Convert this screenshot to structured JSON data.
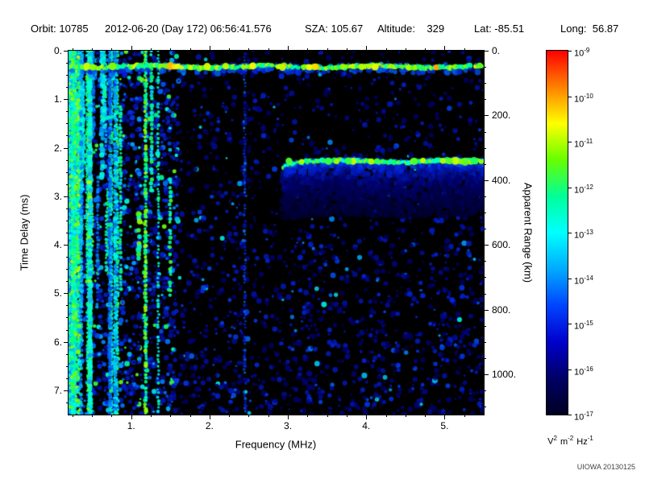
{
  "header": {
    "orbit": "Orbit: 10785",
    "datetime": "2012-06-20 (Day 172) 06:56:41.576",
    "sza": "SZA: 105.67",
    "altitude": "Altitude:    329",
    "lat": "Lat: -85.51",
    "long": "Long:  56.87"
  },
  "watermark": "UIOWA 20130125",
  "chart_data": {
    "type": "heatmap",
    "xlabel": "Frequency (MHz)",
    "ylabel": "Time Delay (ms)",
    "y2label": "Apparent Range (km)",
    "xlim": [
      0.2,
      5.5
    ],
    "ylim": [
      0,
      7.5
    ],
    "y2lim": [
      0,
      1124
    ],
    "km_per_ms": 149.9,
    "x_tick_values": [
      1,
      2,
      3,
      4,
      5
    ],
    "x_tick_labels": [
      "1.",
      "2.",
      "3.",
      "4.",
      "5."
    ],
    "y_tick_values": [
      0,
      1,
      2,
      3,
      4,
      5,
      6,
      7
    ],
    "y_tick_labels": [
      "0.",
      "1.",
      "2.",
      "3.",
      "4.",
      "5.",
      "6.",
      "7."
    ],
    "y2_tick_values": [
      0,
      200,
      400,
      600,
      800,
      1000
    ],
    "y2_tick_labels": [
      "0.",
      "200.",
      "400.",
      "600.",
      "800.",
      "1000."
    ],
    "background": "#000000",
    "colorbar": {
      "scale": "log",
      "max": "1e-9",
      "min": "1e-17",
      "ticks": [
        {
          "b": "10",
          "e": "-9"
        },
        {
          "b": "10",
          "e": "-10"
        },
        {
          "b": "10",
          "e": "-11"
        },
        {
          "b": "10",
          "e": "-12"
        },
        {
          "b": "10",
          "e": "-13"
        },
        {
          "b": "10",
          "e": "-14"
        },
        {
          "b": "10",
          "e": "-15"
        },
        {
          "b": "10",
          "e": "-16"
        },
        {
          "b": "10",
          "e": "-17"
        }
      ],
      "unit_parts": [
        {
          "t": "V",
          "e": "2"
        },
        {
          "t": "m",
          "e": "-2"
        },
        {
          "t": "Hz",
          "e": "-1"
        }
      ],
      "gradient": [
        "#ff0000",
        "#ff8000",
        "#ffff00",
        "#66ff00",
        "#00ff99",
        "#00ffff",
        "#00aaff",
        "#0044ff",
        "#0000cc",
        "#000066",
        "#000022"
      ]
    },
    "features": {
      "echo_bands": [
        {
          "name": "band-1",
          "time_delay_ms": 0.33,
          "apparent_range_km": 49,
          "freq_range_mhz": [
            0.2,
            5.5
          ],
          "relative_intensity": 0.8
        },
        {
          "name": "band-2",
          "time_delay_ms": 2.28,
          "apparent_range_km": 342,
          "freq_range_mhz": [
            2.95,
            5.5
          ],
          "relative_intensity": 0.72,
          "diffuse_tail_ms": 1.1
        }
      ],
      "vertical_features": [
        {
          "freq_mhz": 2.45,
          "relative_intensity": 0.28,
          "extent": "full"
        }
      ],
      "low_freq_noise": {
        "freq_max_mhz": 1.6,
        "relative_intensity": 0.65
      },
      "background_speckle_intensity": 0.2
    },
    "render_seed": 20130125
  }
}
